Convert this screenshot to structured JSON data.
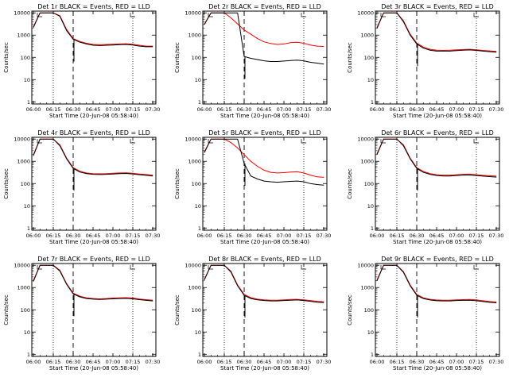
{
  "figure": {
    "background": "#ffffff"
  },
  "colors": {
    "events": "#000000",
    "lld": "#ff0000",
    "axis": "#000000"
  },
  "chart_data": [
    {
      "type": "line",
      "title": "Det 1r BLACK = Events, RED = LLD",
      "xlabel": "Start Time (20-Jun-08 05:58:40)",
      "ylabel": "Counts/sec",
      "yscale": "log",
      "ylim": [
        1,
        10000
      ],
      "xticks": [
        "06:00",
        "06:15",
        "06:30",
        "06:45",
        "07:00",
        "07:15",
        "07:30"
      ],
      "yticks": [
        "1",
        "10",
        "100",
        "1000",
        "10000"
      ],
      "vlines_dotted": [
        "06:15",
        "07:15"
      ],
      "vlines_dashed": [
        "06:30"
      ],
      "flare_end": "06:30",
      "x": [
        "06:00",
        "06:05",
        "06:10",
        "06:15",
        "06:20",
        "06:25",
        "06:30",
        "06:35",
        "06:40",
        "06:45",
        "06:50",
        "06:55",
        "07:00",
        "07:05",
        "07:10",
        "07:15",
        "07:20",
        "07:25",
        "07:30"
      ],
      "series": [
        {
          "name": "Events",
          "values": [
            2200,
            10000,
            10000,
            10000,
            7000,
            1600,
            650,
            480,
            400,
            350,
            340,
            350,
            360,
            370,
            380,
            360,
            320,
            300,
            300
          ]
        },
        {
          "name": "LLD",
          "values": [
            2400,
            10000,
            10000,
            10000,
            7500,
            1800,
            700,
            520,
            430,
            380,
            370,
            380,
            390,
            400,
            410,
            390,
            350,
            320,
            320
          ]
        }
      ]
    },
    {
      "type": "line",
      "title": "Det 2r BLACK = Events, RED = LLD",
      "xlabel": "Start Time (20-Jun-08 05:58:40)",
      "ylabel": "Counts/sec",
      "yscale": "log",
      "ylim": [
        1,
        10000
      ],
      "xticks": [
        "06:00",
        "06:15",
        "06:30",
        "06:45",
        "07:00",
        "07:15",
        "07:30"
      ],
      "yticks": [
        "1",
        "10",
        "100",
        "1000",
        "10000"
      ],
      "vlines_dotted": [
        "06:15",
        "07:15"
      ],
      "vlines_dashed": [
        "06:30"
      ],
      "flare_end": "06:30",
      "x": [
        "06:00",
        "06:05",
        "06:10",
        "06:15",
        "06:20",
        "06:25",
        "06:30",
        "06:35",
        "06:40",
        "06:45",
        "06:50",
        "06:55",
        "07:00",
        "07:05",
        "07:10",
        "07:15",
        "07:20",
        "07:25",
        "07:30"
      ],
      "series": [
        {
          "name": "Events",
          "values": [
            3000,
            10000,
            10000,
            10000,
            10000,
            10000,
            110,
            90,
            80,
            70,
            65,
            65,
            68,
            72,
            75,
            70,
            60,
            55,
            50
          ]
        },
        {
          "name": "LLD",
          "values": [
            3200,
            10000,
            10000,
            10000,
            6000,
            3200,
            1700,
            1100,
            700,
            500,
            420,
            380,
            400,
            460,
            480,
            430,
            360,
            320,
            310
          ]
        }
      ]
    },
    {
      "type": "line",
      "title": "Det 3r BLACK = Events, RED = LLD",
      "xlabel": "Start Time (20-Jun-08 05:58:40)",
      "ylabel": "Counts/sec",
      "yscale": "log",
      "ylim": [
        1,
        10000
      ],
      "xticks": [
        "06:00",
        "06:15",
        "06:30",
        "06:45",
        "07:00",
        "07:15",
        "07:30"
      ],
      "yticks": [
        "1",
        "10",
        "100",
        "1000",
        "10000"
      ],
      "vlines_dotted": [
        "06:15",
        "07:15"
      ],
      "vlines_dashed": [
        "06:30"
      ],
      "flare_end": "06:30",
      "x": [
        "06:00",
        "06:05",
        "06:10",
        "06:15",
        "06:20",
        "06:25",
        "06:30",
        "06:35",
        "06:40",
        "06:45",
        "06:50",
        "06:55",
        "07:00",
        "07:05",
        "07:10",
        "07:15",
        "07:20",
        "07:25",
        "07:30"
      ],
      "series": [
        {
          "name": "Events",
          "values": [
            2000,
            10000,
            10000,
            10000,
            4000,
            1000,
            400,
            260,
            210,
            190,
            190,
            190,
            200,
            210,
            215,
            205,
            190,
            180,
            170
          ]
        },
        {
          "name": "LLD",
          "values": [
            2200,
            10000,
            10000,
            10000,
            4400,
            1100,
            440,
            290,
            230,
            210,
            205,
            210,
            220,
            225,
            230,
            220,
            205,
            195,
            185
          ]
        }
      ]
    },
    {
      "type": "line",
      "title": "Det 4r BLACK = Events, RED = LLD",
      "xlabel": "Start Time (20-Jun-08 05:58:40)",
      "ylabel": "Counts/sec",
      "yscale": "log",
      "ylim": [
        1,
        10000
      ],
      "xticks": [
        "06:00",
        "06:15",
        "06:30",
        "06:45",
        "07:00",
        "07:15",
        "07:30"
      ],
      "yticks": [
        "1",
        "10",
        "100",
        "1000",
        "10000"
      ],
      "vlines_dotted": [
        "06:15",
        "07:15"
      ],
      "vlines_dashed": [
        "06:30"
      ],
      "flare_end": "06:30",
      "x": [
        "06:00",
        "06:05",
        "06:10",
        "06:15",
        "06:20",
        "06:25",
        "06:30",
        "06:35",
        "06:40",
        "06:45",
        "06:50",
        "06:55",
        "07:00",
        "07:05",
        "07:10",
        "07:15",
        "07:20",
        "07:25",
        "07:30"
      ],
      "series": [
        {
          "name": "Events",
          "values": [
            1800,
            10000,
            10000,
            10000,
            5000,
            1300,
            480,
            330,
            280,
            260,
            255,
            260,
            270,
            280,
            285,
            270,
            250,
            235,
            220
          ]
        },
        {
          "name": "LLD",
          "values": [
            2000,
            10000,
            10000,
            10000,
            5500,
            1400,
            520,
            360,
            300,
            280,
            275,
            280,
            290,
            300,
            305,
            290,
            270,
            255,
            240
          ]
        }
      ]
    },
    {
      "type": "line",
      "title": "Det 5r BLACK = Events, RED = LLD",
      "xlabel": "Start Time (20-Jun-08 05:58:40)",
      "ylabel": "Counts/sec",
      "yscale": "log",
      "ylim": [
        1,
        10000
      ],
      "xticks": [
        "06:00",
        "06:15",
        "06:30",
        "06:45",
        "07:00",
        "07:15",
        "07:30"
      ],
      "yticks": [
        "1",
        "10",
        "100",
        "1000",
        "10000"
      ],
      "vlines_dotted": [
        "06:15",
        "07:15"
      ],
      "vlines_dashed": [
        "06:30"
      ],
      "flare_end": "06:30",
      "x": [
        "06:00",
        "06:05",
        "06:10",
        "06:15",
        "06:20",
        "06:25",
        "06:30",
        "06:35",
        "06:40",
        "06:45",
        "06:50",
        "06:55",
        "07:00",
        "07:05",
        "07:10",
        "07:15",
        "07:20",
        "07:25",
        "07:30"
      ],
      "series": [
        {
          "name": "Events",
          "values": [
            2500,
            10000,
            10000,
            10000,
            10000,
            10000,
            800,
            220,
            160,
            130,
            120,
            115,
            120,
            125,
            130,
            120,
            100,
            90,
            85
          ]
        },
        {
          "name": "LLD",
          "values": [
            2700,
            10000,
            10000,
            10000,
            7000,
            4000,
            2000,
            1000,
            600,
            400,
            320,
            300,
            310,
            330,
            340,
            300,
            240,
            200,
            190
          ]
        }
      ]
    },
    {
      "type": "line",
      "title": "Det 6r BLACK = Events, RED = LLD",
      "xlabel": "Start Time (20-Jun-08 05:58:40)",
      "ylabel": "Counts/sec",
      "yscale": "log",
      "ylim": [
        1,
        10000
      ],
      "xticks": [
        "06:00",
        "06:15",
        "06:30",
        "06:45",
        "07:00",
        "07:15",
        "07:30"
      ],
      "yticks": [
        "1",
        "10",
        "100",
        "1000",
        "10000"
      ],
      "vlines_dotted": [
        "06:15",
        "07:15"
      ],
      "vlines_dashed": [
        "06:30"
      ],
      "flare_end": "06:30",
      "x": [
        "06:00",
        "06:05",
        "06:10",
        "06:15",
        "06:20",
        "06:25",
        "06:30",
        "06:35",
        "06:40",
        "06:45",
        "06:50",
        "06:55",
        "07:00",
        "07:05",
        "07:10",
        "07:15",
        "07:20",
        "07:25",
        "07:30"
      ],
      "series": [
        {
          "name": "Events",
          "values": [
            2000,
            10000,
            10000,
            10000,
            5000,
            1300,
            480,
            320,
            260,
            230,
            220,
            220,
            230,
            240,
            240,
            230,
            215,
            205,
            195
          ]
        },
        {
          "name": "LLD",
          "values": [
            2200,
            10000,
            10000,
            10000,
            5500,
            1400,
            520,
            350,
            280,
            250,
            240,
            240,
            250,
            260,
            265,
            250,
            235,
            225,
            215
          ]
        }
      ]
    },
    {
      "type": "line",
      "title": "Det 7r BLACK = Events, RED = LLD",
      "xlabel": "Start Time (20-Jun-08 05:58:40)",
      "ylabel": "Counts/sec",
      "yscale": "log",
      "ylim": [
        1,
        10000
      ],
      "xticks": [
        "06:00",
        "06:15",
        "06:30",
        "06:45",
        "07:00",
        "07:15",
        "07:30"
      ],
      "yticks": [
        "1",
        "10",
        "100",
        "1000",
        "10000"
      ],
      "vlines_dotted": [
        "06:15",
        "07:15"
      ],
      "vlines_dashed": [
        "06:30"
      ],
      "flare_end": "06:30",
      "x": [
        "06:00",
        "06:05",
        "06:10",
        "06:15",
        "06:20",
        "06:25",
        "06:30",
        "06:35",
        "06:40",
        "06:45",
        "06:50",
        "06:55",
        "07:00",
        "07:05",
        "07:10",
        "07:15",
        "07:20",
        "07:25",
        "07:30"
      ],
      "series": [
        {
          "name": "Events",
          "values": [
            1900,
            10000,
            10000,
            10000,
            5500,
            1400,
            520,
            380,
            320,
            300,
            290,
            300,
            310,
            320,
            325,
            310,
            285,
            265,
            250
          ]
        },
        {
          "name": "LLD",
          "values": [
            2100,
            10000,
            10000,
            10000,
            6000,
            1500,
            560,
            410,
            345,
            320,
            310,
            320,
            335,
            345,
            350,
            335,
            305,
            285,
            270
          ]
        }
      ]
    },
    {
      "type": "line",
      "title": "Det 8r BLACK = Events, RED = LLD",
      "xlabel": "Start Time (20-Jun-08 05:58:40)",
      "ylabel": "Counts/sec",
      "yscale": "log",
      "ylim": [
        1,
        10000
      ],
      "xticks": [
        "06:00",
        "06:15",
        "06:30",
        "06:45",
        "07:00",
        "07:15",
        "07:30"
      ],
      "yticks": [
        "1",
        "10",
        "100",
        "1000",
        "10000"
      ],
      "vlines_dotted": [
        "06:15",
        "07:15"
      ],
      "vlines_dashed": [
        "06:30"
      ],
      "flare_end": "06:30",
      "x": [
        "06:00",
        "06:05",
        "06:10",
        "06:15",
        "06:20",
        "06:25",
        "06:30",
        "06:35",
        "06:40",
        "06:45",
        "06:50",
        "06:55",
        "07:00",
        "07:05",
        "07:10",
        "07:15",
        "07:20",
        "07:25",
        "07:30"
      ],
      "series": [
        {
          "name": "Events",
          "values": [
            2200,
            10000,
            10000,
            10000,
            5000,
            1200,
            450,
            320,
            280,
            260,
            250,
            250,
            260,
            270,
            275,
            260,
            240,
            220,
            210
          ]
        },
        {
          "name": "LLD",
          "values": [
            2400,
            10000,
            10000,
            10000,
            5500,
            1300,
            490,
            350,
            300,
            280,
            270,
            270,
            280,
            290,
            295,
            280,
            260,
            240,
            230
          ]
        }
      ]
    },
    {
      "type": "line",
      "title": "Det 9r BLACK = Events, RED = LLD",
      "xlabel": "Start Time (20-Jun-08 05:58:40)",
      "ylabel": "Counts/sec",
      "yscale": "log",
      "ylim": [
        1,
        10000
      ],
      "xticks": [
        "06:00",
        "06:15",
        "06:30",
        "06:45",
        "07:00",
        "07:15",
        "07:30"
      ],
      "yticks": [
        "1",
        "10",
        "100",
        "1000",
        "10000"
      ],
      "vlines_dotted": [
        "06:15",
        "07:15"
      ],
      "vlines_dashed": [
        "06:30"
      ],
      "flare_end": "06:30",
      "x": [
        "06:00",
        "06:05",
        "06:10",
        "06:15",
        "06:20",
        "06:25",
        "06:30",
        "06:35",
        "06:40",
        "06:45",
        "06:50",
        "06:55",
        "07:00",
        "07:05",
        "07:10",
        "07:15",
        "07:20",
        "07:25",
        "07:30"
      ],
      "series": [
        {
          "name": "Events",
          "values": [
            2000,
            10000,
            10000,
            10000,
            4800,
            1200,
            450,
            320,
            275,
            255,
            250,
            250,
            260,
            265,
            270,
            255,
            235,
            215,
            205
          ]
        },
        {
          "name": "LLD",
          "values": [
            2200,
            10000,
            10000,
            10000,
            5200,
            1300,
            490,
            345,
            295,
            275,
            270,
            270,
            280,
            285,
            290,
            275,
            255,
            235,
            225
          ]
        }
      ]
    }
  ]
}
